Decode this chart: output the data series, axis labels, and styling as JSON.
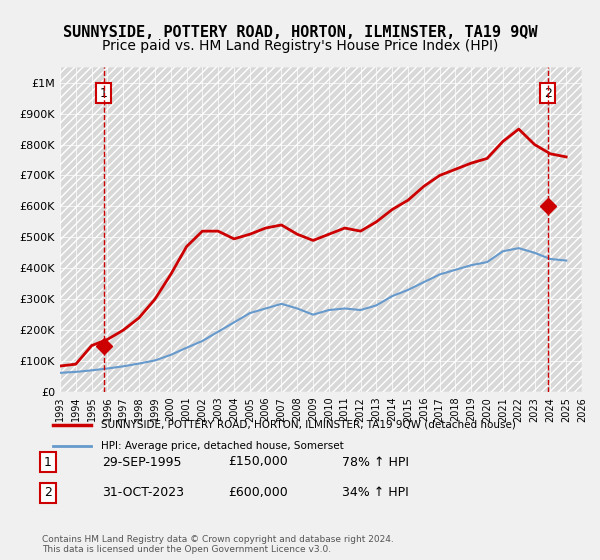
{
  "title": "SUNNYSIDE, POTTERY ROAD, HORTON, ILMINSTER, TA19 9QW",
  "subtitle": "Price paid vs. HM Land Registry's House Price Index (HPI)",
  "title_fontsize": 11,
  "subtitle_fontsize": 10,
  "background_color": "#f0f0f0",
  "plot_bg_color": "#e8e8e8",
  "hatch_color": "#d0d0d0",
  "ylim": [
    0,
    1050000
  ],
  "xlim_start": 1993,
  "xlim_end": 2026,
  "yticks": [
    0,
    100000,
    200000,
    300000,
    400000,
    500000,
    600000,
    700000,
    800000,
    900000,
    1000000
  ],
  "ytick_labels": [
    "£0",
    "£100K",
    "£200K",
    "£300K",
    "£400K",
    "£500K",
    "£600K",
    "£700K",
    "£800K",
    "£900K",
    "£1M"
  ],
  "xticks": [
    1993,
    1994,
    1995,
    1996,
    1997,
    1998,
    1999,
    2000,
    2001,
    2002,
    2003,
    2004,
    2005,
    2006,
    2007,
    2008,
    2009,
    2010,
    2011,
    2012,
    2013,
    2014,
    2015,
    2016,
    2017,
    2018,
    2019,
    2020,
    2021,
    2022,
    2023,
    2024,
    2025,
    2026
  ],
  "property_line_color": "#cc0000",
  "hpi_line_color": "#6699cc",
  "marker1_color": "#cc0000",
  "marker2_color": "#cc0000",
  "dashed_line_color": "#cc0000",
  "point1_year": 1995.75,
  "point1_value": 150000,
  "point2_year": 2023.83,
  "point2_value": 600000,
  "legend_label1": "SUNNYSIDE, POTTERY ROAD, HORTON, ILMINSTER, TA19 9QW (detached house)",
  "legend_label2": "HPI: Average price, detached house, Somerset",
  "annotation1": "1",
  "annotation2": "2",
  "table_data": [
    {
      "num": "1",
      "date": "29-SEP-1995",
      "price": "£150,000",
      "hpi": "78% ↑ HPI"
    },
    {
      "num": "2",
      "date": "31-OCT-2023",
      "price": "£600,000",
      "hpi": "34% ↑ HPI"
    }
  ],
  "footer": "Contains HM Land Registry data © Crown copyright and database right 2024.\nThis data is licensed under the Open Government Licence v3.0.",
  "hpi_data_years": [
    1993,
    1994,
    1995,
    1996,
    1997,
    1998,
    1999,
    2000,
    2001,
    2002,
    2003,
    2004,
    2005,
    2006,
    2007,
    2008,
    2009,
    2010,
    2011,
    2012,
    2013,
    2014,
    2015,
    2016,
    2017,
    2018,
    2019,
    2020,
    2021,
    2022,
    2023,
    2024,
    2025
  ],
  "hpi_data_values": [
    62000,
    65000,
    70000,
    76000,
    83000,
    92000,
    102000,
    120000,
    143000,
    165000,
    195000,
    225000,
    255000,
    270000,
    285000,
    270000,
    250000,
    265000,
    270000,
    265000,
    280000,
    310000,
    330000,
    355000,
    380000,
    395000,
    410000,
    420000,
    455000,
    465000,
    450000,
    430000,
    425000
  ],
  "property_data_years": [
    1993,
    1994,
    1995,
    1996,
    1997,
    1998,
    1999,
    2000,
    2001,
    2002,
    2003,
    2004,
    2005,
    2006,
    2007,
    2008,
    2009,
    2010,
    2011,
    2012,
    2013,
    2014,
    2015,
    2016,
    2017,
    2018,
    2019,
    2020,
    2021,
    2022,
    2023,
    2024,
    2025
  ],
  "property_data_values": [
    84000,
    90000,
    150000,
    170000,
    200000,
    240000,
    300000,
    380000,
    470000,
    520000,
    520000,
    495000,
    510000,
    530000,
    540000,
    510000,
    490000,
    510000,
    530000,
    520000,
    550000,
    590000,
    620000,
    665000,
    700000,
    720000,
    740000,
    755000,
    810000,
    850000,
    800000,
    770000,
    760000
  ]
}
